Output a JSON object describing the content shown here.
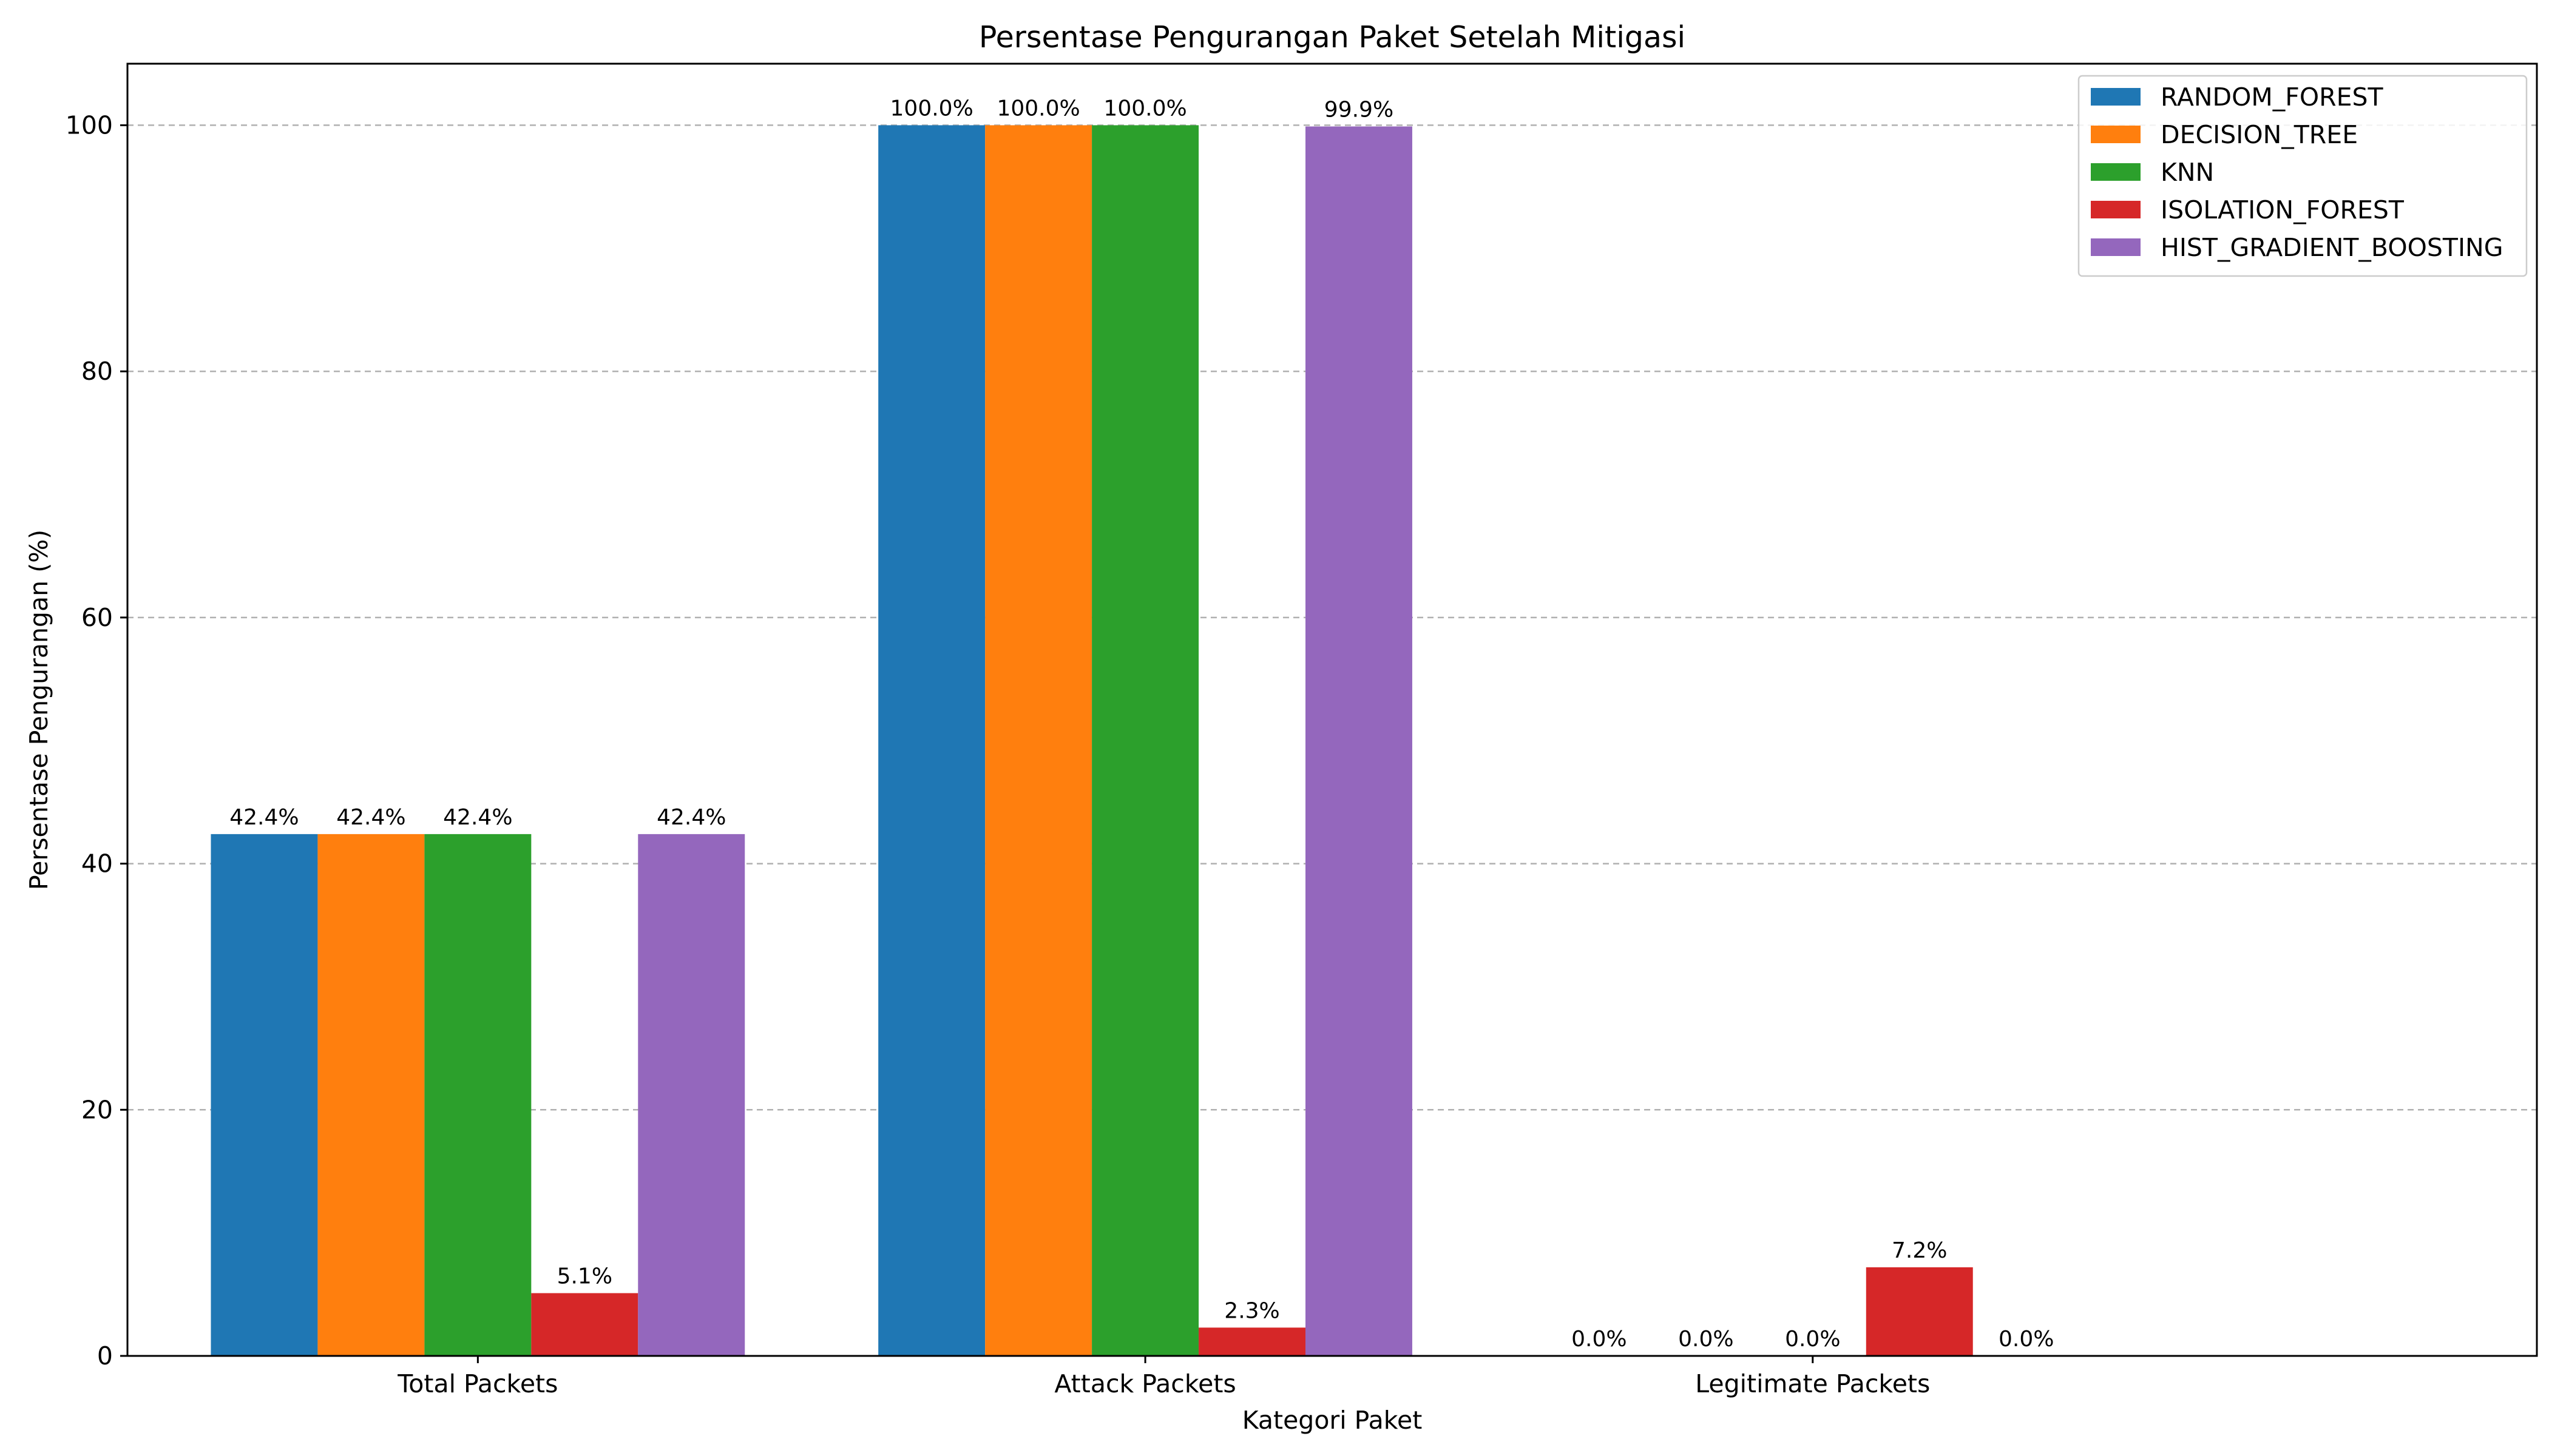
{
  "chart_data": {
    "type": "bar",
    "title": "Persentase Pengurangan Paket Setelah Mitigasi",
    "xlabel": "Kategori Paket",
    "ylabel": "Persentase Pengurangan (%)",
    "ylim": [
      0,
      105
    ],
    "yticks": [
      0,
      20,
      40,
      60,
      80,
      100
    ],
    "grid": "y-dashed",
    "legend_position": "top-right",
    "categories": [
      "Total Packets",
      "Attack Packets",
      "Legitimate Packets"
    ],
    "series": [
      {
        "name": "RANDOM_FOREST",
        "color": "#1f77b4",
        "values": [
          42.4,
          100.0,
          0.0
        ],
        "labels": [
          "42.4%",
          "100.0%",
          "0.0%"
        ]
      },
      {
        "name": "DECISION_TREE",
        "color": "#ff7f0e",
        "values": [
          42.4,
          100.0,
          0.0
        ],
        "labels": [
          "42.4%",
          "100.0%",
          "0.0%"
        ]
      },
      {
        "name": "KNN",
        "color": "#2ca02c",
        "values": [
          42.4,
          100.0,
          0.0
        ],
        "labels": [
          "42.4%",
          "100.0%",
          "0.0%"
        ]
      },
      {
        "name": "ISOLATION_FOREST",
        "color": "#d62728",
        "values": [
          5.1,
          2.3,
          7.2
        ],
        "labels": [
          "5.1%",
          "2.3%",
          "7.2%"
        ]
      },
      {
        "name": "HIST_GRADIENT_BOOSTING",
        "color": "#9467bd",
        "values": [
          42.4,
          99.9,
          0.0
        ],
        "labels": [
          "42.4%",
          "99.9%",
          "0.0%"
        ]
      }
    ]
  }
}
